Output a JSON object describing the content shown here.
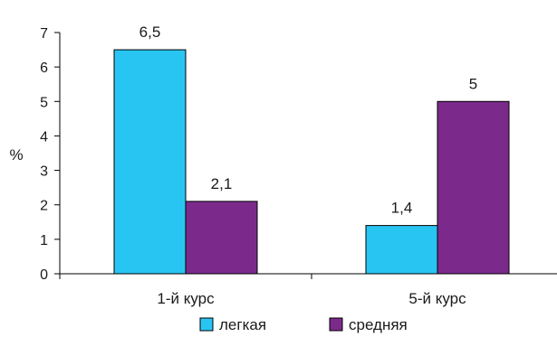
{
  "chart_data": {
    "type": "bar",
    "categories": [
      "1-й курс",
      "5-й курс"
    ],
    "series": [
      {
        "name": "легкая",
        "values": [
          6.5,
          1.4
        ],
        "labels": [
          "6,5",
          "1,4"
        ],
        "color": "#29c5f2"
      },
      {
        "name": "средняя",
        "values": [
          2.1,
          5
        ],
        "labels": [
          "2,1",
          "5"
        ],
        "color": "#7b2a8c"
      }
    ],
    "ylabel": "%",
    "ylim": [
      0,
      7
    ],
    "yticks": [
      "0",
      "1",
      "2",
      "3",
      "4",
      "5",
      "6",
      "7"
    ],
    "grid": false,
    "legend_position": "bottom"
  }
}
